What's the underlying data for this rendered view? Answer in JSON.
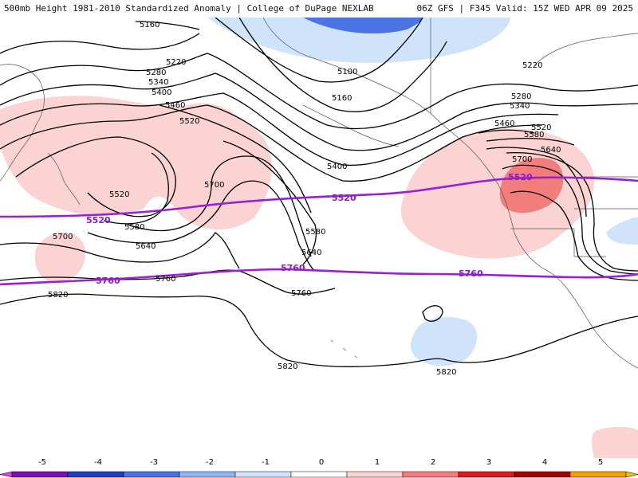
{
  "header": {
    "left": "500mb Height 1981-2010 Standardized Anomaly | College of DuPage NEXLAB",
    "right": "06Z GFS | F345 Valid: 15Z WED APR 09 2025"
  },
  "legend": {
    "ticks": [
      "-5",
      "-4",
      "-3",
      "-2",
      "-1",
      "0",
      "1",
      "2",
      "3",
      "4",
      "5"
    ],
    "bins": [
      {
        "color": "#7a0fb0"
      },
      {
        "color": "#1f3fbf"
      },
      {
        "color": "#4a74e6"
      },
      {
        "color": "#8fb6f2"
      },
      {
        "color": "#cfe4fb"
      },
      {
        "color": "#ffffff"
      },
      {
        "color": "#fbd3d3"
      },
      {
        "color": "#f37c7c"
      },
      {
        "color": "#e31a1a"
      },
      {
        "color": "#a50000"
      },
      {
        "color": "#f2a000"
      }
    ],
    "arrow_left": "#d946d9",
    "arrow_right": "#f5c400"
  },
  "contours": {
    "black": [
      "5160",
      "5100",
      "5160",
      "5220",
      "5220",
      "5280",
      "5280",
      "5340",
      "5340",
      "5400",
      "5400",
      "5460",
      "5460",
      "5520",
      "5520",
      "5520",
      "5580",
      "5580",
      "5580",
      "5640",
      "5640",
      "5640",
      "5700",
      "5700",
      "5700",
      "5760",
      "5760",
      "5820",
      "5820",
      "5820"
    ],
    "purple": [
      "5520",
      "5520",
      "5760",
      "5760",
      "5760",
      "5520"
    ]
  }
}
